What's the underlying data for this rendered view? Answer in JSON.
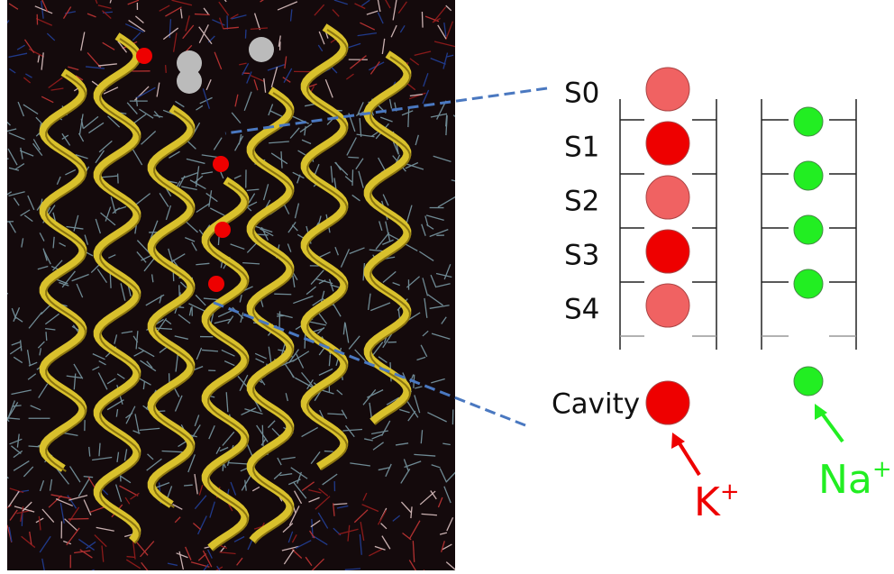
{
  "sites": [
    "S0",
    "S1",
    "S2",
    "S3",
    "S4"
  ],
  "cavity": "Cavity",
  "ions": [
    {
      "symbol": "K",
      "charge": "+"
    },
    {
      "symbol": "Na",
      "charge": "+"
    }
  ]
}
